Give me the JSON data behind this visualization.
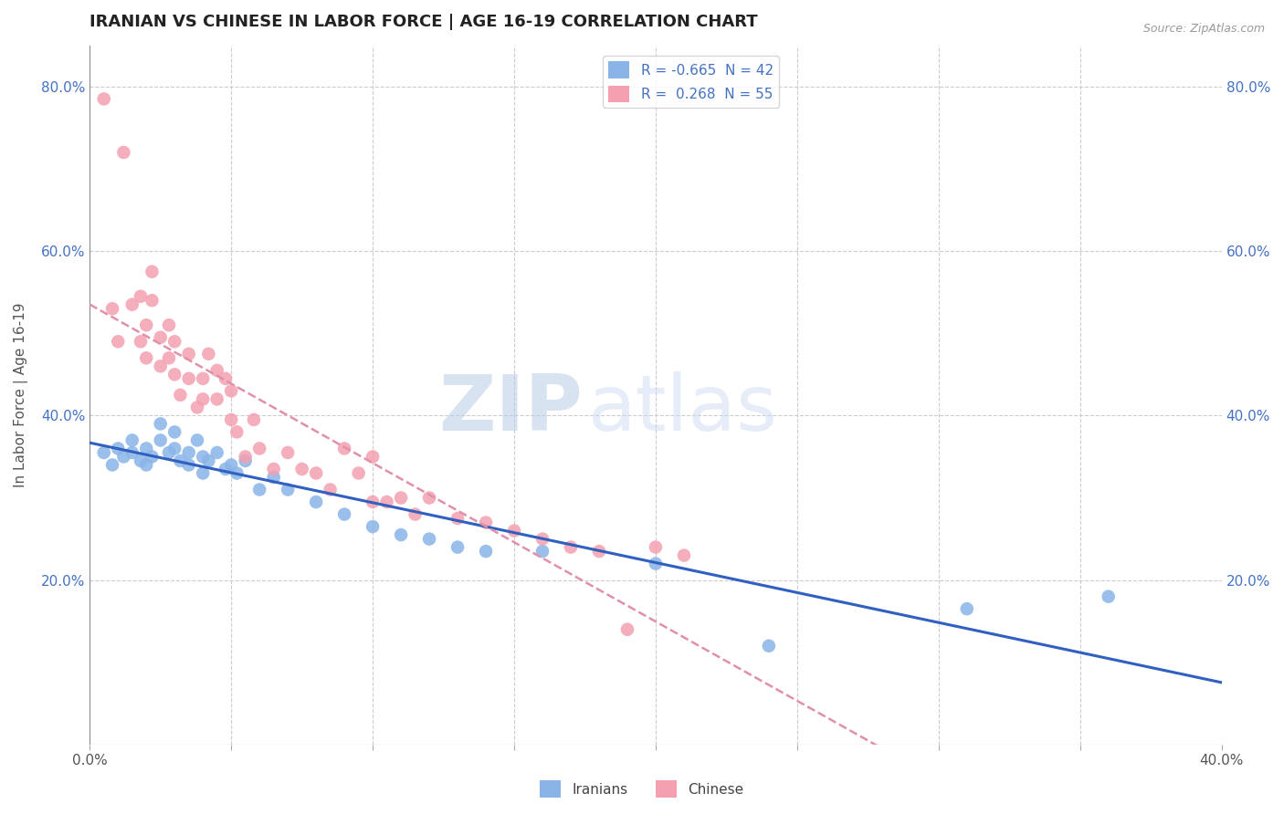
{
  "title": "IRANIAN VS CHINESE IN LABOR FORCE | AGE 16-19 CORRELATION CHART",
  "source_text": "Source: ZipAtlas.com",
  "ylabel": "In Labor Force | Age 16-19",
  "xlim": [
    0.0,
    0.4
  ],
  "ylim": [
    0.0,
    0.85
  ],
  "xticks": [
    0.0,
    0.05,
    0.1,
    0.15,
    0.2,
    0.25,
    0.3,
    0.35,
    0.4
  ],
  "yticks": [
    0.0,
    0.2,
    0.4,
    0.6,
    0.8
  ],
  "grid_color": "#cccccc",
  "background_color": "#ffffff",
  "iranians_color": "#8ab4e8",
  "chinese_color": "#f4a0b0",
  "iranians_line_color": "#3060c0",
  "chinese_line_color": "#e090a8",
  "iranians_R": -0.665,
  "iranians_N": 42,
  "chinese_R": 0.268,
  "chinese_N": 55,
  "watermark_zip": "ZIP",
  "watermark_atlas": "atlas",
  "iranians_x": [
    0.005,
    0.008,
    0.01,
    0.012,
    0.015,
    0.015,
    0.018,
    0.02,
    0.02,
    0.022,
    0.025,
    0.025,
    0.028,
    0.03,
    0.03,
    0.032,
    0.035,
    0.035,
    0.038,
    0.04,
    0.04,
    0.042,
    0.045,
    0.048,
    0.05,
    0.052,
    0.055,
    0.06,
    0.065,
    0.07,
    0.08,
    0.09,
    0.1,
    0.11,
    0.12,
    0.13,
    0.14,
    0.16,
    0.2,
    0.24,
    0.31,
    0.36
  ],
  "iranians_y": [
    0.355,
    0.34,
    0.36,
    0.35,
    0.37,
    0.355,
    0.345,
    0.34,
    0.36,
    0.35,
    0.39,
    0.37,
    0.355,
    0.36,
    0.38,
    0.345,
    0.355,
    0.34,
    0.37,
    0.35,
    0.33,
    0.345,
    0.355,
    0.335,
    0.34,
    0.33,
    0.345,
    0.31,
    0.325,
    0.31,
    0.295,
    0.28,
    0.265,
    0.255,
    0.25,
    0.24,
    0.235,
    0.235,
    0.22,
    0.12,
    0.165,
    0.18
  ],
  "chinese_x": [
    0.005,
    0.008,
    0.01,
    0.012,
    0.015,
    0.018,
    0.018,
    0.02,
    0.02,
    0.022,
    0.022,
    0.025,
    0.025,
    0.028,
    0.028,
    0.03,
    0.03,
    0.032,
    0.035,
    0.035,
    0.038,
    0.04,
    0.04,
    0.042,
    0.045,
    0.045,
    0.048,
    0.05,
    0.05,
    0.052,
    0.055,
    0.058,
    0.06,
    0.065,
    0.07,
    0.075,
    0.08,
    0.085,
    0.09,
    0.095,
    0.1,
    0.1,
    0.105,
    0.11,
    0.115,
    0.12,
    0.13,
    0.14,
    0.15,
    0.16,
    0.17,
    0.18,
    0.19,
    0.2,
    0.21
  ],
  "chinese_y": [
    0.785,
    0.53,
    0.49,
    0.72,
    0.535,
    0.49,
    0.545,
    0.51,
    0.47,
    0.575,
    0.54,
    0.495,
    0.46,
    0.51,
    0.47,
    0.49,
    0.45,
    0.425,
    0.475,
    0.445,
    0.41,
    0.445,
    0.42,
    0.475,
    0.455,
    0.42,
    0.445,
    0.43,
    0.395,
    0.38,
    0.35,
    0.395,
    0.36,
    0.335,
    0.355,
    0.335,
    0.33,
    0.31,
    0.36,
    0.33,
    0.35,
    0.295,
    0.295,
    0.3,
    0.28,
    0.3,
    0.275,
    0.27,
    0.26,
    0.25,
    0.24,
    0.235,
    0.14,
    0.24,
    0.23
  ]
}
